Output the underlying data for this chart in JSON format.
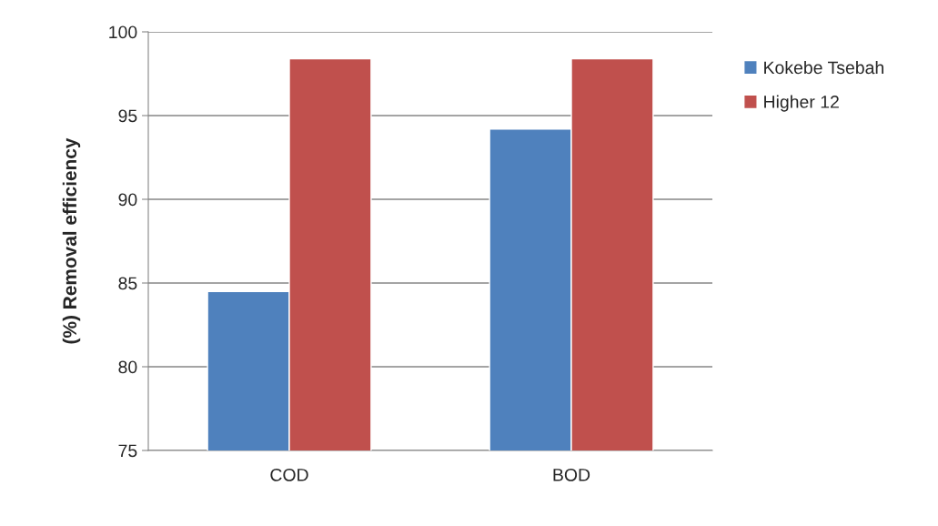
{
  "chart_data": {
    "type": "bar",
    "ylabel": "(%) Removal efficiency",
    "categories": [
      "COD",
      "BOD"
    ],
    "series": [
      {
        "name": "Kokebe Tsebah",
        "color": "#4f81bd",
        "values": [
          84.5,
          94.2
        ]
      },
      {
        "name": "Higher 12",
        "color": "#c0504d",
        "values": [
          98.4,
          98.4
        ]
      }
    ],
    "ylim": [
      75,
      100
    ],
    "yticks": [
      75,
      80,
      85,
      90,
      95,
      100
    ],
    "grid": "y",
    "legend": "right"
  }
}
